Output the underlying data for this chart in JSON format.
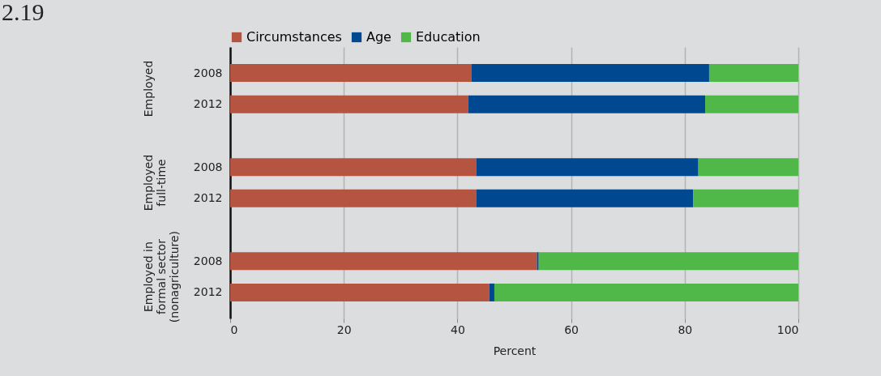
{
  "chart_data": {
    "type": "bar",
    "orientation": "horizontal",
    "stacked": true,
    "title": "2.19",
    "categories": [
      "2008",
      "2012",
      "2008",
      "2012",
      "2008",
      "2012"
    ],
    "series": [
      {
        "name": "Circumstances",
        "color": "#b55441",
        "values": [
          42.5,
          41.9,
          43.3,
          43.3,
          54.0,
          45.6
        ]
      },
      {
        "name": "Age",
        "color": "#004990",
        "values": [
          41.8,
          41.7,
          39.1,
          38.2,
          0.3,
          0.9
        ]
      },
      {
        "name": "Education",
        "color": "#50b848",
        "values": [
          15.7,
          16.4,
          17.6,
          18.5,
          45.7,
          53.5
        ]
      }
    ],
    "annotations": [
      "Employed",
      "Employed\nfull-time",
      "Employed in\nformal sector\n(nonagriculture)"
    ],
    "xlabel": "Percent",
    "xlim": [
      0,
      100
    ],
    "xticks": [
      0,
      20,
      40,
      60,
      80,
      100
    ],
    "grid": "x",
    "legend": "top"
  }
}
